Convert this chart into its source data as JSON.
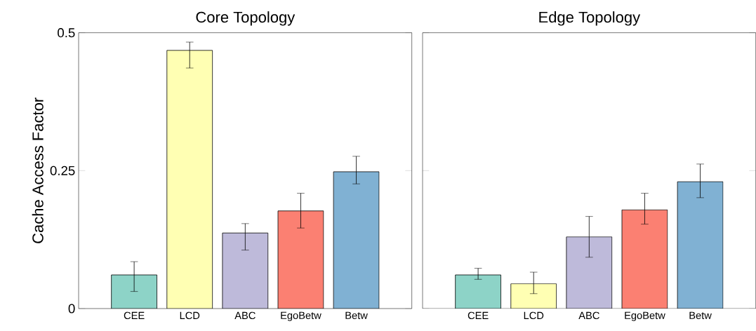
{
  "chart_data": [
    {
      "type": "bar",
      "title": "Core Topology",
      "ylabel": "Cache Access Factor",
      "categories": [
        "CEE",
        "LCD",
        "ABC",
        "EgoBetw",
        "Betw"
      ],
      "values": [
        0.061,
        0.468,
        0.137,
        0.177,
        0.248
      ],
      "errors": [
        [
          0.031,
          0.085
        ],
        [
          0.436,
          0.483
        ],
        [
          0.106,
          0.154
        ],
        [
          0.146,
          0.209
        ],
        [
          0.226,
          0.276
        ]
      ],
      "colors": [
        "#8dd3c7",
        "#ffffb3",
        "#bebada",
        "#fb8072",
        "#80b1d3"
      ],
      "ylim": [
        0,
        0.5
      ],
      "yticks": [
        0,
        0.25,
        0.5
      ]
    },
    {
      "type": "bar",
      "title": "Edge Topology",
      "categories": [
        "CEE",
        "LCD",
        "ABC",
        "EgoBetw",
        "Betw"
      ],
      "values": [
        0.061,
        0.045,
        0.13,
        0.179,
        0.23
      ],
      "errors": [
        [
          0.053,
          0.073
        ],
        [
          0.027,
          0.066
        ],
        [
          0.093,
          0.167
        ],
        [
          0.153,
          0.209
        ],
        [
          0.201,
          0.262
        ]
      ],
      "colors": [
        "#8dd3c7",
        "#ffffb3",
        "#bebada",
        "#fb8072",
        "#80b1d3"
      ],
      "ylim": [
        0,
        0.5
      ],
      "yticks": [
        0,
        0.25,
        0.5
      ],
      "tick_labels": "x"
    }
  ]
}
